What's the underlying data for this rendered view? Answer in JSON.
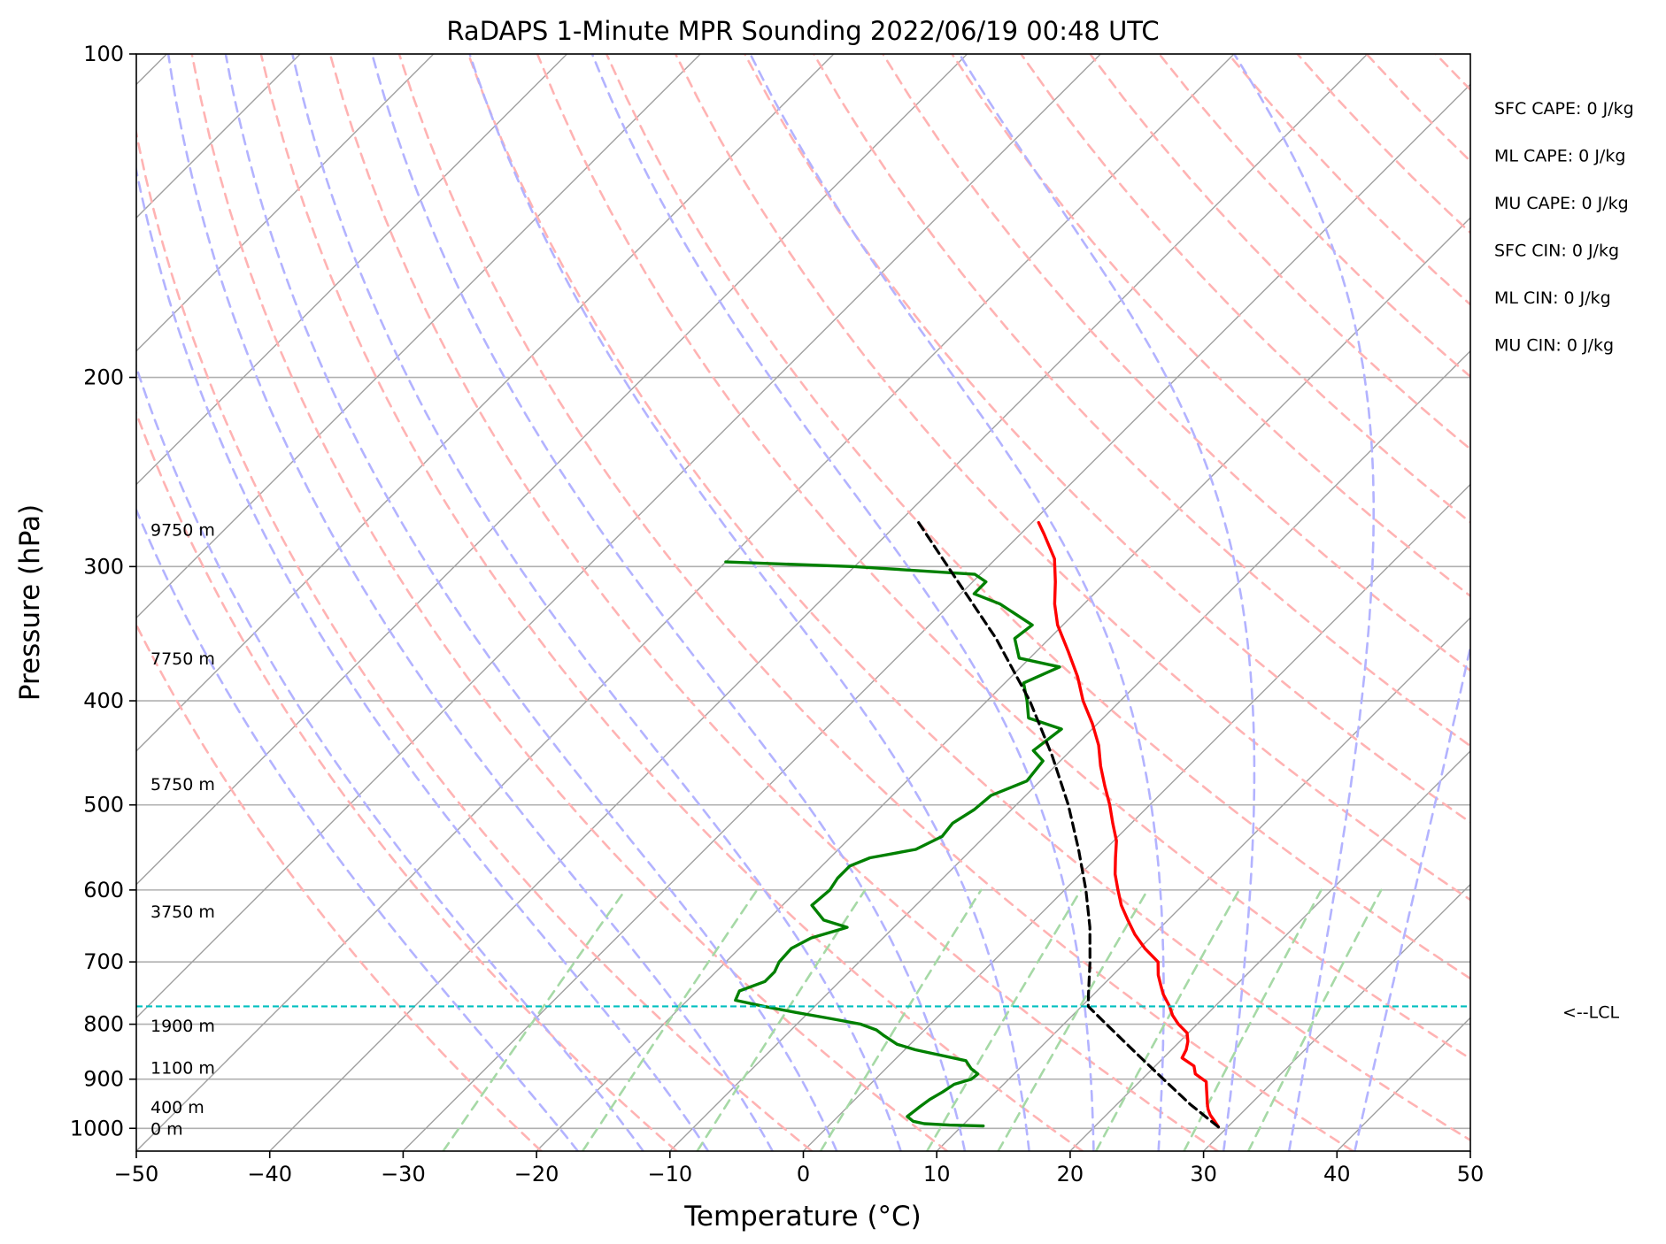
{
  "chart_data": {
    "type": "line",
    "title": "RaDAPS 1-Minute MPR Sounding 2022/06/19 00:48 UTC",
    "xlabel": "Temperature (°C)",
    "ylabel": "Pressure (hPa)",
    "xlim": [
      -50,
      50
    ],
    "ylim": [
      1050,
      100
    ],
    "y_scale": "log",
    "skew": "skew-T",
    "grid": true,
    "x_ticks": [
      -50,
      -40,
      -30,
      -20,
      -10,
      0,
      10,
      20,
      30,
      40,
      50
    ],
    "x_tick_labels": [
      "−50",
      "−40",
      "−30",
      "−20",
      "−10",
      "0",
      "10",
      "20",
      "30",
      "40",
      "50"
    ],
    "y_ticks": [
      100,
      200,
      300,
      400,
      500,
      600,
      700,
      800,
      900,
      1000
    ],
    "y_tick_labels": [
      "100",
      "200",
      "300",
      "400",
      "500",
      "600",
      "700",
      "800",
      "900",
      "1000"
    ],
    "series": [
      {
        "role": "temperature",
        "color": "#ff0000",
        "style": "solid",
        "points": [
          [
            997,
            29.3
          ],
          [
            985,
            28.6
          ],
          [
            972,
            27.8
          ],
          [
            960,
            27.2
          ],
          [
            948,
            26.7
          ],
          [
            935,
            26.2
          ],
          [
            920,
            25.6
          ],
          [
            905,
            25.0
          ],
          [
            890,
            23.6
          ],
          [
            875,
            22.9
          ],
          [
            860,
            21.4
          ],
          [
            845,
            21.1
          ],
          [
            830,
            20.6
          ],
          [
            815,
            19.9
          ],
          [
            800,
            18.6
          ],
          [
            785,
            17.5
          ],
          [
            770,
            16.6
          ],
          [
            750,
            15.2
          ],
          [
            735,
            14.3
          ],
          [
            720,
            13.4
          ],
          [
            700,
            12.4
          ],
          [
            680,
            10.4
          ],
          [
            660,
            8.6
          ],
          [
            640,
            7.0
          ],
          [
            620,
            5.4
          ],
          [
            600,
            4.0
          ],
          [
            580,
            2.6
          ],
          [
            560,
            1.4
          ],
          [
            540,
            0.2
          ],
          [
            520,
            -1.4
          ],
          [
            500,
            -3.0
          ],
          [
            480,
            -4.8
          ],
          [
            460,
            -6.6
          ],
          [
            440,
            -8.3
          ],
          [
            420,
            -10.4
          ],
          [
            400,
            -12.8
          ],
          [
            380,
            -15.0
          ],
          [
            360,
            -17.6
          ],
          [
            340,
            -20.4
          ],
          [
            325,
            -22.2
          ],
          [
            310,
            -23.8
          ],
          [
            295,
            -25.6
          ],
          [
            280,
            -28.2
          ],
          [
            273,
            -29.5
          ]
        ]
      },
      {
        "role": "dewpoint",
        "color": "#008000",
        "style": "solid",
        "points": [
          [
            995,
            11.6
          ],
          [
            993,
            9.0
          ],
          [
            990,
            7.0
          ],
          [
            985,
            6.0
          ],
          [
            975,
            5.2
          ],
          [
            965,
            5.3
          ],
          [
            955,
            5.4
          ],
          [
            940,
            5.6
          ],
          [
            925,
            6.0
          ],
          [
            910,
            6.3
          ],
          [
            900,
            7.2
          ],
          [
            890,
            7.3
          ],
          [
            880,
            6.4
          ],
          [
            865,
            5.4
          ],
          [
            845,
            0.8
          ],
          [
            835,
            -1.0
          ],
          [
            820,
            -2.6
          ],
          [
            810,
            -3.6
          ],
          [
            800,
            -5.2
          ],
          [
            790,
            -8.0
          ],
          [
            780,
            -11.0
          ],
          [
            770,
            -13.8
          ],
          [
            760,
            -16.4
          ],
          [
            745,
            -16.8
          ],
          [
            730,
            -15.6
          ],
          [
            715,
            -15.6
          ],
          [
            700,
            -16.0
          ],
          [
            680,
            -16.1
          ],
          [
            665,
            -15.4
          ],
          [
            650,
            -13.5
          ],
          [
            640,
            -15.8
          ],
          [
            620,
            -17.8
          ],
          [
            600,
            -17.6
          ],
          [
            585,
            -17.9
          ],
          [
            570,
            -17.9
          ],
          [
            560,
            -17.0
          ],
          [
            550,
            -14.2
          ],
          [
            535,
            -13.2
          ],
          [
            520,
            -13.4
          ],
          [
            505,
            -12.8
          ],
          [
            490,
            -12.6
          ],
          [
            475,
            -11.0
          ],
          [
            455,
            -11.3
          ],
          [
            445,
            -12.8
          ],
          [
            425,
            -12.3
          ],
          [
            415,
            -15.6
          ],
          [
            400,
            -17.0
          ],
          [
            385,
            -18.6
          ],
          [
            372,
            -17.1
          ],
          [
            365,
            -20.8
          ],
          [
            350,
            -22.6
          ],
          [
            340,
            -22.3
          ],
          [
            325,
            -26.3
          ],
          [
            318,
            -29.0
          ],
          [
            310,
            -29.0
          ],
          [
            305,
            -30.4
          ],
          [
            300,
            -40.0
          ],
          [
            297,
            -50.0
          ]
        ]
      },
      {
        "role": "parcel",
        "color": "#000000",
        "style": "dashed",
        "points": [
          [
            997,
            29.3
          ],
          [
            950,
            25.5
          ],
          [
            900,
            21.6
          ],
          [
            850,
            17.5
          ],
          [
            800,
            13.2
          ],
          [
            770,
            10.5
          ],
          [
            750,
            9.6
          ],
          [
            700,
            7.3
          ],
          [
            650,
            4.7
          ],
          [
            600,
            1.6
          ],
          [
            550,
            -2.0
          ],
          [
            500,
            -6.1
          ],
          [
            450,
            -11.0
          ],
          [
            400,
            -16.8
          ],
          [
            350,
            -24.0
          ],
          [
            300,
            -33.0
          ],
          [
            273,
            -38.5
          ]
        ]
      }
    ],
    "dry_adiabats_theta_K": [
      250,
      260,
      270,
      280,
      290,
      300,
      310,
      320,
      330,
      340,
      350,
      360,
      370,
      380,
      390,
      400,
      410,
      420,
      430,
      440,
      450,
      460,
      470
    ],
    "moist_adiabats_start_C_at_1000hPa": [
      -20,
      -15,
      -10,
      -5,
      0,
      5,
      10,
      15,
      20,
      25,
      30,
      35,
      40
    ],
    "mixing_ratio_lines_gkg": [
      0.4,
      1,
      2,
      4,
      7,
      10,
      16,
      24,
      32
    ],
    "lcl": {
      "pressure": 770,
      "label": "<--LCL",
      "color": "#00bfbf"
    },
    "height_labels": [
      {
        "pressure": 1000,
        "label": "0 m"
      },
      {
        "pressure": 955,
        "label": "400 m"
      },
      {
        "pressure": 878,
        "label": "1100 m"
      },
      {
        "pressure": 802,
        "label": "1900 m"
      },
      {
        "pressure": 628,
        "label": "3750 m"
      },
      {
        "pressure": 478,
        "label": "5750 m"
      },
      {
        "pressure": 365,
        "label": "7750 m"
      },
      {
        "pressure": 277,
        "label": "9750 m"
      }
    ],
    "indices": [
      "SFC CAPE: 0 J/kg",
      "ML CAPE: 0 J/kg",
      "MU CAPE: 0 J/kg",
      "SFC CIN: 0 J/kg",
      "ML CIN: 0 J/kg",
      "MU CIN: 0 J/kg"
    ],
    "colors": {
      "isotherm": "#a0a0a0",
      "isobar": "#b0b0b0",
      "dry_adiabat": "#ffb3b3",
      "moist_adiabat": "#b3b3ff",
      "mixing_ratio": "#a6d9a6"
    }
  }
}
